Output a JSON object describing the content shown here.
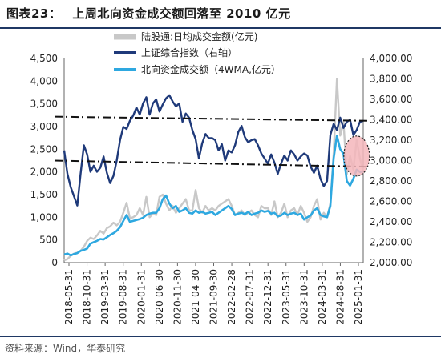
{
  "figure": {
    "label": "图表23：",
    "title": "上周北向资金成交额回落至 2010 亿元",
    "source": "资料来源：Wind，华泰研究"
  },
  "chart_data": {
    "type": "line",
    "x": [
      "2018-05-31",
      "2018-10-31",
      "2019-03-31",
      "2019-08-31",
      "2020-01-31",
      "2020-06-30",
      "2020-11-30",
      "2021-04-30",
      "2021-09-30",
      "2022-02-28",
      "2022-07-31",
      "2022-12-31",
      "2023-05-31",
      "2023-10-31",
      "2024-03-31",
      "2024-08-31",
      "2025-01-31"
    ],
    "y_left": {
      "range": [
        0,
        4500
      ],
      "ticks": [
        "0",
        "500",
        "1,000",
        "1,500",
        "2,000",
        "2,500",
        "3,000",
        "3,500",
        "4,000",
        "4,500"
      ]
    },
    "y_right": {
      "range": [
        2000,
        4000
      ],
      "ticks": [
        "2,000.00",
        "2,200.00",
        "2,400.00",
        "2,600.00",
        "2,800.00",
        "3,000.00",
        "3,200.00",
        "3,400.00",
        "3,600.00",
        "3,800.00",
        "4,000.00"
      ]
    },
    "series": [
      {
        "name": "陆股通:日均成交金额(亿元)",
        "axis": "left",
        "color": "#c8c8c8",
        "values": [
          [
            0,
            50
          ],
          [
            1,
            80
          ],
          [
            2,
            150
          ],
          [
            3,
            200
          ],
          [
            4,
            220
          ],
          [
            5,
            260
          ],
          [
            6,
            350
          ],
          [
            7,
            480
          ],
          [
            8,
            550
          ],
          [
            9,
            520
          ],
          [
            10,
            600
          ],
          [
            11,
            700
          ],
          [
            12,
            640
          ],
          [
            13,
            760
          ],
          [
            14,
            800
          ],
          [
            15,
            880
          ],
          [
            16,
            820
          ],
          [
            17,
            900
          ],
          [
            18,
            1100
          ],
          [
            19,
            1320
          ],
          [
            20,
            980
          ],
          [
            21,
            1000
          ],
          [
            22,
            1050
          ],
          [
            23,
            1200
          ],
          [
            24,
            1050
          ],
          [
            25,
            1450
          ],
          [
            26,
            1000
          ],
          [
            27,
            1080
          ],
          [
            28,
            1050
          ],
          [
            29,
            1450
          ],
          [
            30,
            1500
          ],
          [
            31,
            1300
          ],
          [
            32,
            1150
          ],
          [
            33,
            1250
          ],
          [
            34,
            1100
          ],
          [
            35,
            1200
          ],
          [
            36,
            1300
          ],
          [
            37,
            1400
          ],
          [
            38,
            1150
          ],
          [
            39,
            1150
          ],
          [
            40,
            1600
          ],
          [
            41,
            1200
          ],
          [
            42,
            1100
          ],
          [
            43,
            1250
          ],
          [
            44,
            1150
          ],
          [
            45,
            1200
          ],
          [
            46,
            1150
          ],
          [
            47,
            1250
          ],
          [
            48,
            1300
          ],
          [
            49,
            1350
          ],
          [
            50,
            1400
          ],
          [
            51,
            1250
          ],
          [
            52,
            1050
          ],
          [
            53,
            1100
          ],
          [
            54,
            1150
          ],
          [
            55,
            1050
          ],
          [
            56,
            1100
          ],
          [
            57,
            1150
          ],
          [
            58,
            1050
          ],
          [
            59,
            1000
          ],
          [
            60,
            1250
          ],
          [
            61,
            1200
          ],
          [
            62,
            1200
          ],
          [
            63,
            1050
          ],
          [
            64,
            1350
          ],
          [
            65,
            1000
          ],
          [
            66,
            1100
          ],
          [
            67,
            1300
          ],
          [
            68,
            1000
          ],
          [
            69,
            1150
          ],
          [
            70,
            1200
          ],
          [
            71,
            1050
          ],
          [
            72,
            1250
          ],
          [
            73,
            1100
          ],
          [
            74,
            900
          ],
          [
            75,
            1000
          ],
          [
            76,
            1250
          ],
          [
            77,
            1400
          ],
          [
            78,
            950
          ],
          [
            79,
            1100
          ],
          [
            80,
            1000
          ],
          [
            81,
            1300
          ],
          [
            82,
            2400
          ],
          [
            83,
            4050
          ],
          [
            84,
            2800
          ],
          [
            85,
            3100
          ],
          [
            86,
            1950
          ],
          [
            87,
            2350
          ],
          [
            88,
            2050
          ],
          [
            89,
            2700
          ],
          [
            90,
            2300
          ],
          [
            91,
            2010
          ]
        ]
      },
      {
        "name": "上证综合指数（右轴）",
        "axis": "right",
        "color": "#1f3a7a",
        "values": [
          [
            0,
            3100
          ],
          [
            1,
            2870
          ],
          [
            2,
            2740
          ],
          [
            3,
            2650
          ],
          [
            4,
            2560
          ],
          [
            5,
            2870
          ],
          [
            6,
            3150
          ],
          [
            7,
            3060
          ],
          [
            8,
            2890
          ],
          [
            9,
            2950
          ],
          [
            10,
            2890
          ],
          [
            11,
            2930
          ],
          [
            12,
            3040
          ],
          [
            13,
            2880
          ],
          [
            14,
            2780
          ],
          [
            15,
            2850
          ],
          [
            16,
            3000
          ],
          [
            17,
            3200
          ],
          [
            18,
            3330
          ],
          [
            19,
            3310
          ],
          [
            20,
            3390
          ],
          [
            21,
            3440
          ],
          [
            22,
            3520
          ],
          [
            23,
            3450
          ],
          [
            24,
            3560
          ],
          [
            25,
            3620
          ],
          [
            26,
            3450
          ],
          [
            27,
            3560
          ],
          [
            28,
            3600
          ],
          [
            29,
            3480
          ],
          [
            30,
            3550
          ],
          [
            31,
            3610
          ],
          [
            32,
            3640
          ],
          [
            33,
            3580
          ],
          [
            34,
            3530
          ],
          [
            35,
            3560
          ],
          [
            36,
            3380
          ],
          [
            37,
            3460
          ],
          [
            38,
            3420
          ],
          [
            39,
            3300
          ],
          [
            40,
            3210
          ],
          [
            41,
            3020
          ],
          [
            42,
            3170
          ],
          [
            43,
            3260
          ],
          [
            44,
            3220
          ],
          [
            45,
            3220
          ],
          [
            46,
            3200
          ],
          [
            47,
            3100
          ],
          [
            48,
            3160
          ],
          [
            49,
            3000
          ],
          [
            50,
            3100
          ],
          [
            51,
            3080
          ],
          [
            52,
            3150
          ],
          [
            53,
            3280
          ],
          [
            54,
            3340
          ],
          [
            55,
            3230
          ],
          [
            56,
            3180
          ],
          [
            57,
            3200
          ],
          [
            58,
            3210
          ],
          [
            59,
            3150
          ],
          [
            60,
            3070
          ],
          [
            61,
            3020
          ],
          [
            62,
            2970
          ],
          [
            63,
            3060
          ],
          [
            64,
            2980
          ],
          [
            65,
            2870
          ],
          [
            66,
            2970
          ],
          [
            67,
            3050
          ],
          [
            68,
            3000
          ],
          [
            69,
            3100
          ],
          [
            70,
            3060
          ],
          [
            71,
            3000
          ],
          [
            72,
            3040
          ],
          [
            73,
            3070
          ],
          [
            74,
            3050
          ],
          [
            75,
            2940
          ],
          [
            76,
            2880
          ],
          [
            77,
            2950
          ],
          [
            78,
            2820
          ],
          [
            79,
            2750
          ],
          [
            80,
            2800
          ],
          [
            81,
            3250
          ],
          [
            82,
            3360
          ],
          [
            83,
            3300
          ],
          [
            84,
            3420
          ],
          [
            85,
            3320
          ],
          [
            86,
            3380
          ],
          [
            87,
            3400
          ],
          [
            88,
            3250
          ],
          [
            89,
            3300
          ],
          [
            90,
            3380
          ],
          [
            91,
            3390
          ]
        ]
      },
      {
        "name": "北向资金成交额（4WMA,亿元）",
        "axis": "left",
        "color": "#2ea8e0",
        "values": [
          [
            0,
            180
          ],
          [
            1,
            200
          ],
          [
            2,
            160
          ],
          [
            3,
            190
          ],
          [
            4,
            210
          ],
          [
            5,
            260
          ],
          [
            6,
            280
          ],
          [
            7,
            310
          ],
          [
            8,
            420
          ],
          [
            9,
            450
          ],
          [
            10,
            480
          ],
          [
            11,
            520
          ],
          [
            12,
            510
          ],
          [
            13,
            560
          ],
          [
            14,
            610
          ],
          [
            15,
            650
          ],
          [
            16,
            700
          ],
          [
            17,
            780
          ],
          [
            18,
            920
          ],
          [
            19,
            1050
          ],
          [
            20,
            900
          ],
          [
            21,
            920
          ],
          [
            22,
            940
          ],
          [
            23,
            960
          ],
          [
            24,
            990
          ],
          [
            25,
            1050
          ],
          [
            26,
            1080
          ],
          [
            27,
            1100
          ],
          [
            28,
            1100
          ],
          [
            29,
            1200
          ],
          [
            30,
            1400
          ],
          [
            31,
            1480
          ],
          [
            32,
            1300
          ],
          [
            33,
            1200
          ],
          [
            34,
            1250
          ],
          [
            35,
            1120
          ],
          [
            36,
            1150
          ],
          [
            37,
            1200
          ],
          [
            38,
            1100
          ],
          [
            39,
            1080
          ],
          [
            40,
            1150
          ],
          [
            41,
            1100
          ],
          [
            42,
            1120
          ],
          [
            43,
            1080
          ],
          [
            44,
            1100
          ],
          [
            45,
            1120
          ],
          [
            46,
            1050
          ],
          [
            47,
            1100
          ],
          [
            48,
            1150
          ],
          [
            49,
            1200
          ],
          [
            50,
            1250
          ],
          [
            51,
            1180
          ],
          [
            52,
            1050
          ],
          [
            53,
            1080
          ],
          [
            54,
            1100
          ],
          [
            55,
            1070
          ],
          [
            56,
            1120
          ],
          [
            57,
            1050
          ],
          [
            58,
            1080
          ],
          [
            59,
            1100
          ],
          [
            60,
            1150
          ],
          [
            61,
            1120
          ],
          [
            62,
            1140
          ],
          [
            63,
            1080
          ],
          [
            64,
            1100
          ],
          [
            65,
            1020
          ],
          [
            66,
            1040
          ],
          [
            67,
            1100
          ],
          [
            68,
            1050
          ],
          [
            69,
            1080
          ],
          [
            70,
            1100
          ],
          [
            71,
            1050
          ],
          [
            72,
            1080
          ],
          [
            73,
            950
          ],
          [
            74,
            1000
          ],
          [
            75,
            1040
          ],
          [
            76,
            1150
          ],
          [
            77,
            1200
          ],
          [
            78,
            1050
          ],
          [
            79,
            1020
          ],
          [
            80,
            1000
          ],
          [
            81,
            1250
          ],
          [
            82,
            2300
          ],
          [
            83,
            2800
          ],
          [
            84,
            2500
          ],
          [
            85,
            2400
          ],
          [
            86,
            1800
          ],
          [
            87,
            1700
          ],
          [
            88,
            1850
          ],
          [
            89,
            2050
          ],
          [
            90,
            2000
          ],
          [
            91,
            2010
          ]
        ]
      }
    ],
    "reference_lines": [
      {
        "axis": "right",
        "from": [
          0,
          3430
        ],
        "to": [
          91,
          3390
        ],
        "style": "dash-dot"
      },
      {
        "axis": "right",
        "from": [
          0,
          3000
        ],
        "to": [
          91,
          2940
        ],
        "style": "dash-dot"
      }
    ],
    "highlight": {
      "x": 89,
      "y_left": 2350,
      "fill": "#f4b6bb",
      "style": "dotted-circle"
    },
    "legend": {
      "position": "top"
    }
  }
}
